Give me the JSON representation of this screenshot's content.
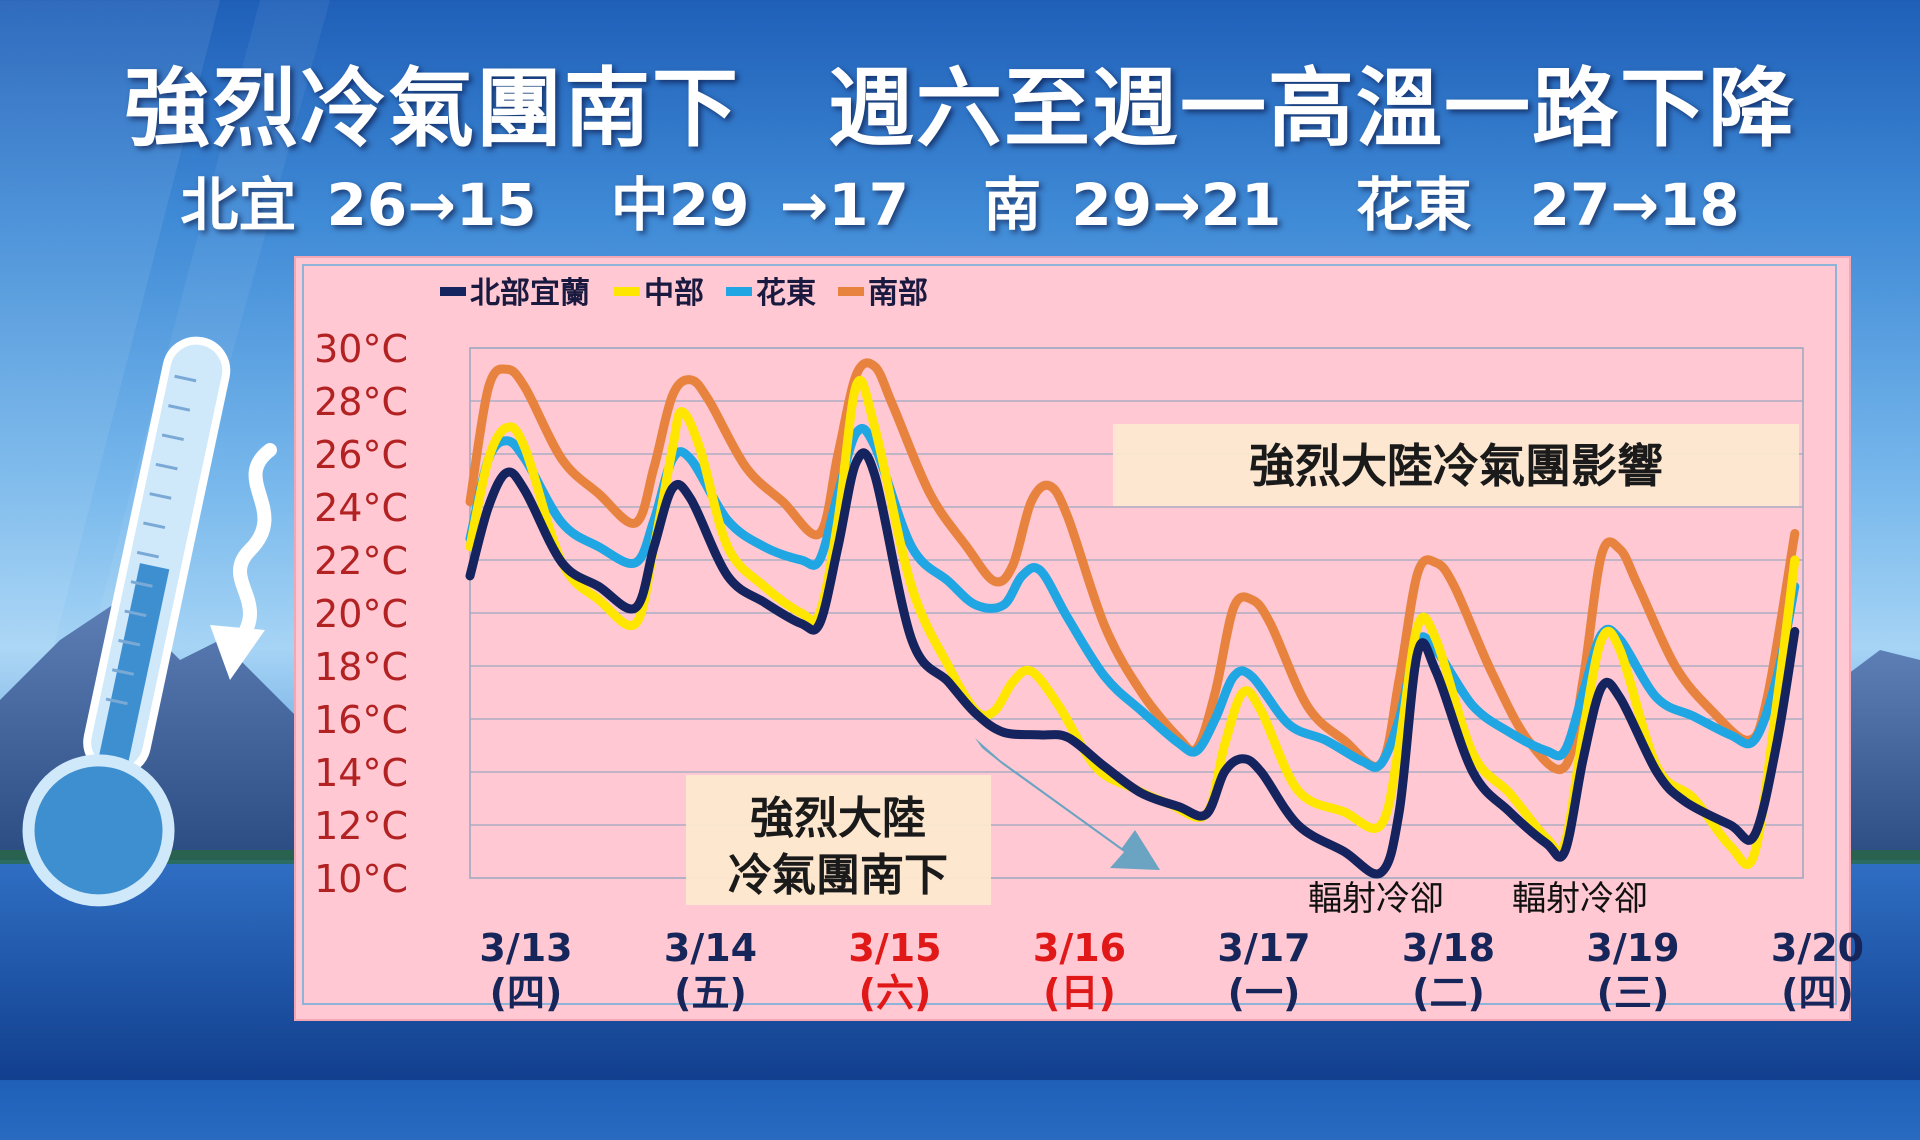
{
  "headline": "強烈冷氣團南下　週六至週一高溫一路下降",
  "regional_summary": [
    "北宜 26→15",
    "中29 →17",
    "南 29→21",
    "花東　27→18"
  ],
  "colors": {
    "north": "#15235e",
    "central": "#ffe600",
    "east": "#1fa6e3",
    "south": "#e8833f",
    "plot_bg": "#ffc8d2",
    "axis_text": "#b22222",
    "weekend_text": "#e01818"
  },
  "chart_data": {
    "type": "line",
    "legend_placement": "top-left",
    "grid": true,
    "ylim": [
      10,
      30
    ],
    "yticks": [
      "10°C",
      "12°C",
      "14°C",
      "16°C",
      "18°C",
      "20°C",
      "22°C",
      "24°C",
      "26°C",
      "28°C",
      "30°C"
    ],
    "x_dates": [
      "3/13",
      "3/14",
      "3/15",
      "3/16",
      "3/17",
      "3/18",
      "3/19",
      "3/20"
    ],
    "x_weekdays": [
      "(四)",
      "(五)",
      "(六)",
      "(日)",
      "(一)",
      "(二)",
      "(三)",
      "(四)"
    ],
    "weekend_indices": [
      2,
      3
    ],
    "x_unit": "day index (0 = 3/13 00:00)",
    "series": [
      {
        "name": "北部宜蘭",
        "color": "#15235e",
        "points": [
          [
            0,
            21.4
          ],
          [
            0.1,
            24.0
          ],
          [
            0.2,
            25.3
          ],
          [
            0.3,
            24.6
          ],
          [
            0.5,
            21.9
          ],
          [
            0.7,
            21.0
          ],
          [
            0.9,
            20.2
          ],
          [
            1.0,
            22.5
          ],
          [
            1.1,
            24.7
          ],
          [
            1.2,
            24.3
          ],
          [
            1.4,
            21.4
          ],
          [
            1.6,
            20.4
          ],
          [
            1.8,
            19.6
          ],
          [
            1.9,
            19.6
          ],
          [
            2.0,
            22.5
          ],
          [
            2.1,
            25.7
          ],
          [
            2.2,
            25.2
          ],
          [
            2.4,
            19.0
          ],
          [
            2.6,
            17.4
          ],
          [
            2.75,
            16.2
          ],
          [
            2.9,
            15.5
          ],
          [
            3.1,
            15.4
          ],
          [
            3.25,
            15.3
          ],
          [
            3.45,
            14.2
          ],
          [
            3.65,
            13.2
          ],
          [
            3.85,
            12.7
          ],
          [
            4.0,
            12.4
          ],
          [
            4.1,
            14.0
          ],
          [
            4.2,
            14.5
          ],
          [
            4.3,
            14.0
          ],
          [
            4.5,
            12.0
          ],
          [
            4.75,
            11.0
          ],
          [
            4.95,
            10.2
          ],
          [
            5.05,
            12.5
          ],
          [
            5.15,
            18.5
          ],
          [
            5.25,
            17.8
          ],
          [
            5.45,
            14.0
          ],
          [
            5.65,
            12.5
          ],
          [
            5.85,
            11.3
          ],
          [
            5.95,
            11.0
          ],
          [
            6.05,
            14.5
          ],
          [
            6.15,
            17.2
          ],
          [
            6.25,
            16.8
          ],
          [
            6.45,
            14.0
          ],
          [
            6.6,
            12.9
          ],
          [
            6.85,
            12.0
          ],
          [
            6.98,
            11.6
          ],
          [
            7.1,
            15.0
          ],
          [
            7.2,
            19.3
          ]
        ]
      },
      {
        "name": "中部",
        "color": "#ffe600",
        "points": [
          [
            0,
            22.5
          ],
          [
            0.1,
            25.8
          ],
          [
            0.2,
            27.0
          ],
          [
            0.3,
            26.2
          ],
          [
            0.5,
            21.9
          ],
          [
            0.7,
            20.5
          ],
          [
            0.9,
            19.6
          ],
          [
            1.0,
            22.5
          ],
          [
            1.1,
            26.2
          ],
          [
            1.15,
            27.6
          ],
          [
            1.25,
            26.2
          ],
          [
            1.4,
            22.5
          ],
          [
            1.6,
            21.0
          ],
          [
            1.8,
            20.0
          ],
          [
            1.9,
            20.0
          ],
          [
            2.0,
            23.5
          ],
          [
            2.1,
            28.6
          ],
          [
            2.2,
            27.0
          ],
          [
            2.4,
            21.0
          ],
          [
            2.6,
            18.0
          ],
          [
            2.75,
            16.3
          ],
          [
            2.85,
            16.3
          ],
          [
            2.95,
            17.4
          ],
          [
            3.05,
            17.8
          ],
          [
            3.2,
            16.5
          ],
          [
            3.4,
            14.2
          ],
          [
            3.6,
            13.4
          ],
          [
            3.8,
            12.8
          ],
          [
            4.0,
            12.4
          ],
          [
            4.1,
            15.0
          ],
          [
            4.2,
            17.0
          ],
          [
            4.3,
            16.3
          ],
          [
            4.5,
            13.3
          ],
          [
            4.75,
            12.5
          ],
          [
            4.95,
            12.0
          ],
          [
            5.05,
            15.0
          ],
          [
            5.15,
            19.5
          ],
          [
            5.25,
            19.0
          ],
          [
            5.45,
            14.7
          ],
          [
            5.65,
            13.2
          ],
          [
            5.85,
            11.5
          ],
          [
            5.95,
            11.3
          ],
          [
            6.05,
            15.5
          ],
          [
            6.15,
            19.0
          ],
          [
            6.25,
            18.6
          ],
          [
            6.45,
            14.2
          ],
          [
            6.65,
            13.0
          ],
          [
            6.85,
            11.2
          ],
          [
            6.98,
            10.9
          ],
          [
            7.1,
            16.5
          ],
          [
            7.2,
            22.0
          ]
        ]
      },
      {
        "name": "花東",
        "color": "#1fa6e3",
        "points": [
          [
            0,
            22.8
          ],
          [
            0.1,
            25.8
          ],
          [
            0.2,
            26.5
          ],
          [
            0.3,
            25.8
          ],
          [
            0.5,
            23.4
          ],
          [
            0.7,
            22.5
          ],
          [
            0.9,
            21.9
          ],
          [
            1.0,
            23.5
          ],
          [
            1.1,
            25.8
          ],
          [
            1.2,
            25.8
          ],
          [
            1.4,
            23.5
          ],
          [
            1.6,
            22.5
          ],
          [
            1.8,
            22.0
          ],
          [
            1.9,
            22.0
          ],
          [
            2.0,
            24.5
          ],
          [
            2.1,
            26.8
          ],
          [
            2.2,
            26.3
          ],
          [
            2.4,
            22.5
          ],
          [
            2.6,
            21.2
          ],
          [
            2.75,
            20.3
          ],
          [
            2.9,
            20.3
          ],
          [
            3.0,
            21.4
          ],
          [
            3.1,
            21.6
          ],
          [
            3.25,
            19.8
          ],
          [
            3.45,
            17.6
          ],
          [
            3.65,
            16.3
          ],
          [
            3.85,
            15.1
          ],
          [
            3.95,
            14.8
          ],
          [
            4.05,
            16.0
          ],
          [
            4.15,
            17.6
          ],
          [
            4.25,
            17.6
          ],
          [
            4.45,
            15.8
          ],
          [
            4.65,
            15.2
          ],
          [
            4.85,
            14.4
          ],
          [
            4.95,
            14.3
          ],
          [
            5.05,
            16.0
          ],
          [
            5.15,
            18.9
          ],
          [
            5.25,
            18.6
          ],
          [
            5.45,
            16.5
          ],
          [
            5.65,
            15.5
          ],
          [
            5.85,
            14.8
          ],
          [
            5.95,
            14.8
          ],
          [
            6.05,
            17.0
          ],
          [
            6.15,
            19.2
          ],
          [
            6.25,
            19.0
          ],
          [
            6.45,
            16.8
          ],
          [
            6.65,
            16.1
          ],
          [
            6.85,
            15.4
          ],
          [
            6.98,
            15.2
          ],
          [
            7.1,
            17.5
          ],
          [
            7.2,
            21.0
          ]
        ]
      },
      {
        "name": "南部",
        "color": "#e8833f",
        "points": [
          [
            0,
            24.2
          ],
          [
            0.1,
            28.5
          ],
          [
            0.2,
            29.2
          ],
          [
            0.3,
            28.5
          ],
          [
            0.5,
            25.8
          ],
          [
            0.7,
            24.5
          ],
          [
            0.9,
            23.4
          ],
          [
            1.0,
            25.5
          ],
          [
            1.1,
            28.2
          ],
          [
            1.2,
            28.8
          ],
          [
            1.3,
            28.0
          ],
          [
            1.5,
            25.5
          ],
          [
            1.7,
            24.2
          ],
          [
            1.9,
            23.0
          ],
          [
            2.0,
            26.0
          ],
          [
            2.1,
            29.0
          ],
          [
            2.2,
            29.3
          ],
          [
            2.3,
            27.8
          ],
          [
            2.5,
            24.5
          ],
          [
            2.7,
            22.5
          ],
          [
            2.85,
            21.2
          ],
          [
            2.95,
            21.8
          ],
          [
            3.05,
            24.2
          ],
          [
            3.15,
            24.8
          ],
          [
            3.25,
            23.6
          ],
          [
            3.45,
            19.5
          ],
          [
            3.65,
            17.0
          ],
          [
            3.85,
            15.3
          ],
          [
            3.95,
            14.9
          ],
          [
            4.05,
            17.0
          ],
          [
            4.15,
            20.2
          ],
          [
            4.25,
            20.5
          ],
          [
            4.35,
            19.6
          ],
          [
            4.55,
            16.5
          ],
          [
            4.75,
            15.2
          ],
          [
            4.95,
            14.3
          ],
          [
            5.05,
            17.5
          ],
          [
            5.15,
            21.5
          ],
          [
            5.25,
            21.9
          ],
          [
            5.35,
            21.0
          ],
          [
            5.55,
            17.8
          ],
          [
            5.75,
            15.2
          ],
          [
            5.95,
            14.2
          ],
          [
            6.05,
            17.5
          ],
          [
            6.15,
            22.2
          ],
          [
            6.25,
            22.4
          ],
          [
            6.35,
            21.0
          ],
          [
            6.55,
            18.0
          ],
          [
            6.75,
            16.3
          ],
          [
            6.95,
            15.2
          ],
          [
            7.05,
            16.8
          ],
          [
            7.2,
            23.0
          ]
        ]
      }
    ],
    "annotations": {
      "influence_label": "強烈大陸冷氣團影響",
      "arrival_label_line1": "強烈大陸",
      "arrival_label_line2": "冷氣團南下",
      "radiative_cooling_1": "輻射冷卻",
      "radiative_cooling_2": "輻射冷卻"
    }
  }
}
